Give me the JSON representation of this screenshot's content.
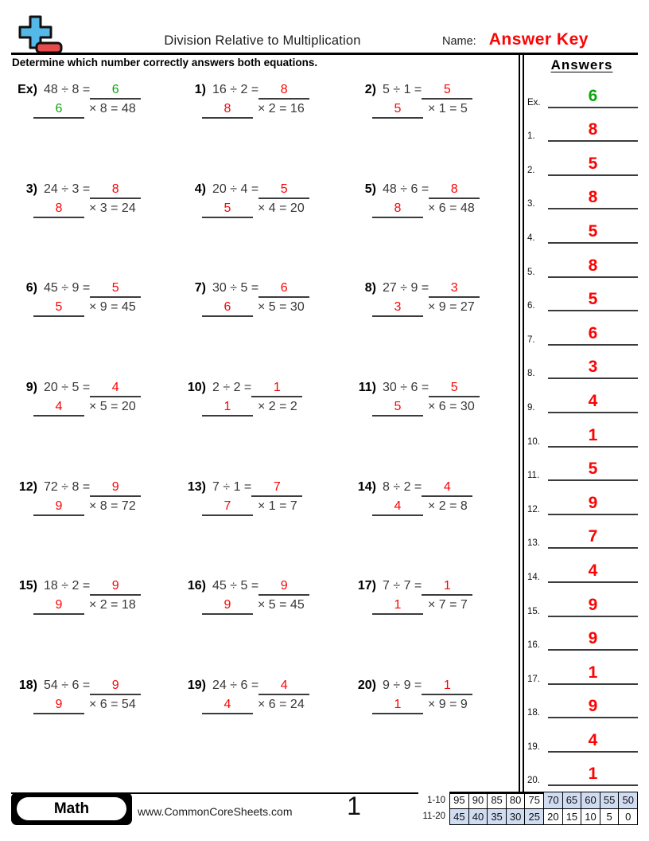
{
  "header": {
    "title": "Division Relative to Multiplication",
    "name_label": "Name:",
    "answer_key": "Answer Key"
  },
  "instruction": "Determine which number correctly answers both equations.",
  "problems": [
    {
      "label": "Ex)",
      "division": "48 ÷ 8 =",
      "answer": "6",
      "multiplication": "× 8 = 48",
      "color": "green"
    },
    {
      "label": "1)",
      "division": "16 ÷ 2 =",
      "answer": "8",
      "multiplication": "× 2 = 16",
      "color": "red"
    },
    {
      "label": "2)",
      "division": "5 ÷ 1 =",
      "answer": "5",
      "multiplication": "× 1 = 5",
      "color": "red"
    },
    {
      "label": "3)",
      "division": "24 ÷ 3 =",
      "answer": "8",
      "multiplication": "× 3 = 24",
      "color": "red"
    },
    {
      "label": "4)",
      "division": "20 ÷ 4 =",
      "answer": "5",
      "multiplication": "× 4 = 20",
      "color": "red"
    },
    {
      "label": "5)",
      "division": "48 ÷ 6 =",
      "answer": "8",
      "multiplication": "× 6 = 48",
      "color": "red"
    },
    {
      "label": "6)",
      "division": "45 ÷ 9 =",
      "answer": "5",
      "multiplication": "× 9 = 45",
      "color": "red"
    },
    {
      "label": "7)",
      "division": "30 ÷ 5 =",
      "answer": "6",
      "multiplication": "× 5 = 30",
      "color": "red"
    },
    {
      "label": "8)",
      "division": "27 ÷ 9 =",
      "answer": "3",
      "multiplication": "× 9 = 27",
      "color": "red"
    },
    {
      "label": "9)",
      "division": "20 ÷ 5 =",
      "answer": "4",
      "multiplication": "× 5 = 20",
      "color": "red"
    },
    {
      "label": "10)",
      "division": "2 ÷ 2 =",
      "answer": "1",
      "multiplication": "× 2 = 2",
      "color": "red"
    },
    {
      "label": "11)",
      "division": "30 ÷ 6 =",
      "answer": "5",
      "multiplication": "× 6 = 30",
      "color": "red"
    },
    {
      "label": "12)",
      "division": "72 ÷ 8 =",
      "answer": "9",
      "multiplication": "× 8 = 72",
      "color": "red"
    },
    {
      "label": "13)",
      "division": "7 ÷ 1 =",
      "answer": "7",
      "multiplication": "× 1 = 7",
      "color": "red"
    },
    {
      "label": "14)",
      "division": "8 ÷ 2 =",
      "answer": "4",
      "multiplication": "× 2 = 8",
      "color": "red"
    },
    {
      "label": "15)",
      "division": "18 ÷ 2 =",
      "answer": "9",
      "multiplication": "× 2 = 18",
      "color": "red"
    },
    {
      "label": "16)",
      "division": "45 ÷ 5 =",
      "answer": "9",
      "multiplication": "× 5 = 45",
      "color": "red"
    },
    {
      "label": "17)",
      "division": "7 ÷ 7 =",
      "answer": "1",
      "multiplication": "× 7 = 7",
      "color": "red"
    },
    {
      "label": "18)",
      "division": "54 ÷ 6 =",
      "answer": "9",
      "multiplication": "× 6 = 54",
      "color": "red"
    },
    {
      "label": "19)",
      "division": "24 ÷ 6 =",
      "answer": "4",
      "multiplication": "× 6 = 24",
      "color": "red"
    },
    {
      "label": "20)",
      "division": "9 ÷ 9 =",
      "answer": "1",
      "multiplication": "× 9 = 9",
      "color": "red"
    }
  ],
  "answers_panel": {
    "title": "Answers",
    "items": [
      {
        "label": "Ex.",
        "value": "6",
        "color": "green"
      },
      {
        "label": "1.",
        "value": "8",
        "color": "red"
      },
      {
        "label": "2.",
        "value": "5",
        "color": "red"
      },
      {
        "label": "3.",
        "value": "8",
        "color": "red"
      },
      {
        "label": "4.",
        "value": "5",
        "color": "red"
      },
      {
        "label": "5.",
        "value": "8",
        "color": "red"
      },
      {
        "label": "6.",
        "value": "5",
        "color": "red"
      },
      {
        "label": "7.",
        "value": "6",
        "color": "red"
      },
      {
        "label": "8.",
        "value": "3",
        "color": "red"
      },
      {
        "label": "9.",
        "value": "4",
        "color": "red"
      },
      {
        "label": "10.",
        "value": "1",
        "color": "red"
      },
      {
        "label": "11.",
        "value": "5",
        "color": "red"
      },
      {
        "label": "12.",
        "value": "9",
        "color": "red"
      },
      {
        "label": "13.",
        "value": "7",
        "color": "red"
      },
      {
        "label": "14.",
        "value": "4",
        "color": "red"
      },
      {
        "label": "15.",
        "value": "9",
        "color": "red"
      },
      {
        "label": "16.",
        "value": "9",
        "color": "red"
      },
      {
        "label": "17.",
        "value": "1",
        "color": "red"
      },
      {
        "label": "18.",
        "value": "9",
        "color": "red"
      },
      {
        "label": "19.",
        "value": "4",
        "color": "red"
      },
      {
        "label": "20.",
        "value": "1",
        "color": "red"
      }
    ]
  },
  "footer": {
    "badge_label": "Math",
    "website": "www.CommonCoreSheets.com",
    "page_number": "1",
    "score_table": {
      "rows": [
        {
          "label": "1-10",
          "values": [
            "95",
            "90",
            "85",
            "80",
            "75",
            "70",
            "65",
            "60",
            "55",
            "50"
          ],
          "shaded": [
            false,
            false,
            false,
            false,
            false,
            true,
            true,
            true,
            true,
            true
          ]
        },
        {
          "label": "11-20",
          "values": [
            "45",
            "40",
            "35",
            "30",
            "25",
            "20",
            "15",
            "10",
            "5",
            "0"
          ],
          "shaded": [
            true,
            true,
            true,
            true,
            true,
            false,
            false,
            false,
            false,
            false
          ]
        }
      ]
    }
  },
  "colors": {
    "answer_red": "#fa0404",
    "answer_green": "#0ca50e",
    "logo_blue": "#54b9e9",
    "logo_red": "#e84b4b",
    "table_shade": "#cfdcf1"
  }
}
